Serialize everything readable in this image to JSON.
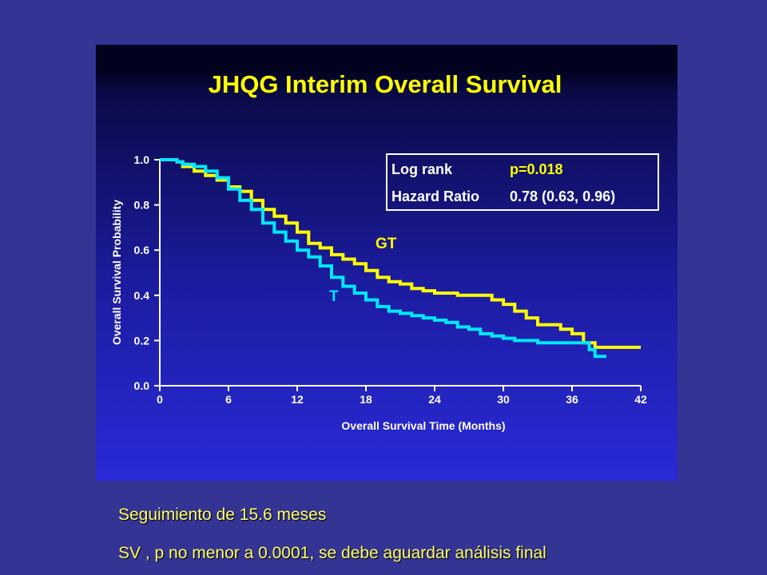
{
  "chart_data": {
    "type": "line",
    "title": "JHQG Interim Overall Survival",
    "xlabel": "Overall Survival Time (Months)",
    "ylabel": "Overall Survival Probability",
    "xlim": [
      0,
      42
    ],
    "ylim": [
      0,
      1
    ],
    "xticks": [
      "0",
      "6",
      "12",
      "18",
      "24",
      "30",
      "36",
      "42"
    ],
    "yticks": [
      "0.0",
      "0.2",
      "0.4",
      "0.6",
      "0.8",
      "1.0"
    ],
    "grid": false,
    "series": [
      {
        "name": "GT",
        "color": "#ffff00",
        "x": [
          0,
          1.5,
          2,
          3,
          4,
          5,
          6,
          7,
          8,
          9,
          10,
          11,
          12,
          13,
          14,
          15,
          16,
          17,
          18,
          19,
          20,
          21,
          22,
          23,
          24,
          25,
          26,
          27,
          28,
          29,
          30,
          31,
          32,
          33,
          34,
          35,
          36,
          37,
          38,
          39,
          40,
          41,
          42
        ],
        "y": [
          1.0,
          0.99,
          0.97,
          0.95,
          0.93,
          0.91,
          0.88,
          0.86,
          0.82,
          0.78,
          0.75,
          0.72,
          0.68,
          0.63,
          0.61,
          0.58,
          0.56,
          0.54,
          0.51,
          0.48,
          0.46,
          0.45,
          0.43,
          0.42,
          0.41,
          0.41,
          0.4,
          0.4,
          0.4,
          0.38,
          0.36,
          0.33,
          0.3,
          0.27,
          0.27,
          0.25,
          0.23,
          0.19,
          0.17,
          0.17,
          0.17,
          0.17,
          0.17
        ]
      },
      {
        "name": "T",
        "color": "#00e8ff",
        "x": [
          0,
          1.5,
          2,
          3,
          4,
          5,
          6,
          7,
          8,
          9,
          10,
          11,
          12,
          13,
          14,
          15,
          16,
          17,
          18,
          19,
          20,
          21,
          22,
          23,
          24,
          25,
          26,
          27,
          28,
          29,
          30,
          31,
          32,
          33,
          34,
          35,
          36,
          37,
          37.5,
          38,
          39
        ],
        "y": [
          1.0,
          0.99,
          0.98,
          0.97,
          0.95,
          0.92,
          0.87,
          0.82,
          0.78,
          0.72,
          0.68,
          0.64,
          0.6,
          0.57,
          0.53,
          0.48,
          0.44,
          0.41,
          0.38,
          0.35,
          0.33,
          0.32,
          0.31,
          0.3,
          0.29,
          0.28,
          0.26,
          0.25,
          0.23,
          0.22,
          0.21,
          0.2,
          0.2,
          0.19,
          0.19,
          0.19,
          0.19,
          0.19,
          0.16,
          0.13,
          0.13
        ]
      }
    ],
    "series_labels": [
      "GT",
      "T"
    ],
    "stats_box": {
      "row1_label": "Log rank",
      "row1_value": "p=0.018",
      "row2_label": "Hazard Ratio",
      "row2_value": "0.78 (0.63, 0.96)"
    }
  },
  "captions": [
    "Seguimiento de 15.6 meses",
    "SV , p no menor a 0.0001, se debe aguardar análisis final"
  ]
}
